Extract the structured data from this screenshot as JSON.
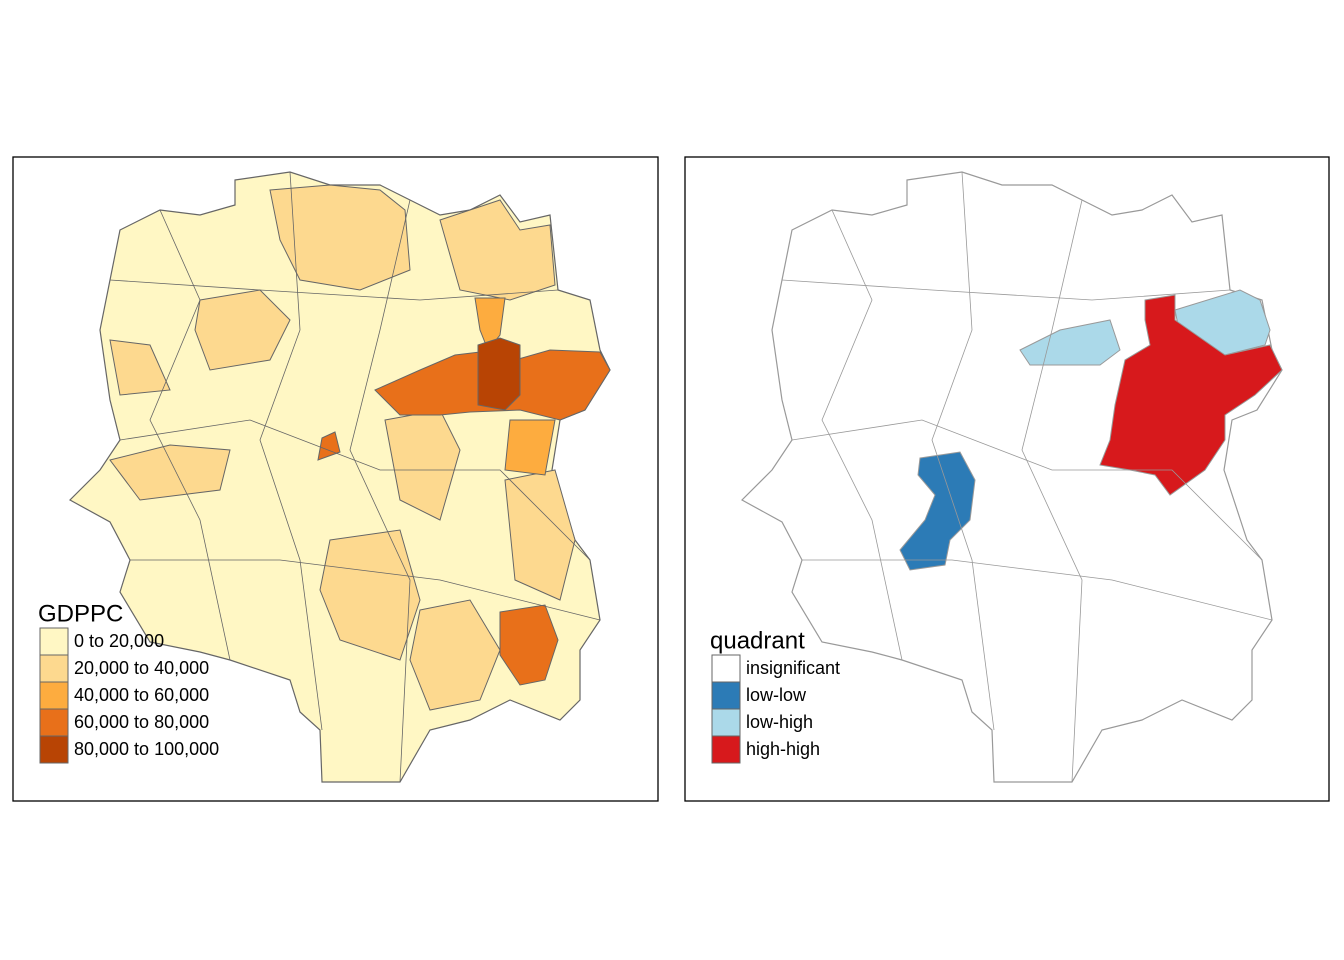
{
  "maps": [
    {
      "legend_title": "GDPPC",
      "legend": [
        {
          "label": "0 to 20,000",
          "color": "#fff7c4"
        },
        {
          "label": "20,000 to 40,000",
          "color": "#fdd98f"
        },
        {
          "label": "40,000 to 60,000",
          "color": "#fdac3f"
        },
        {
          "label": "60,000 to 80,000",
          "color": "#e8701a"
        },
        {
          "label": "80,000 to 100,000",
          "color": "#b84404"
        }
      ]
    },
    {
      "legend_title": "quadrant",
      "legend": [
        {
          "label": "insignificant",
          "color": "#ffffff"
        },
        {
          "label": "low-low",
          "color": "#2c7bb6"
        },
        {
          "label": "low-high",
          "color": "#abd9e9"
        },
        {
          "label": "high-high",
          "color": "#d7191c"
        }
      ]
    }
  ]
}
